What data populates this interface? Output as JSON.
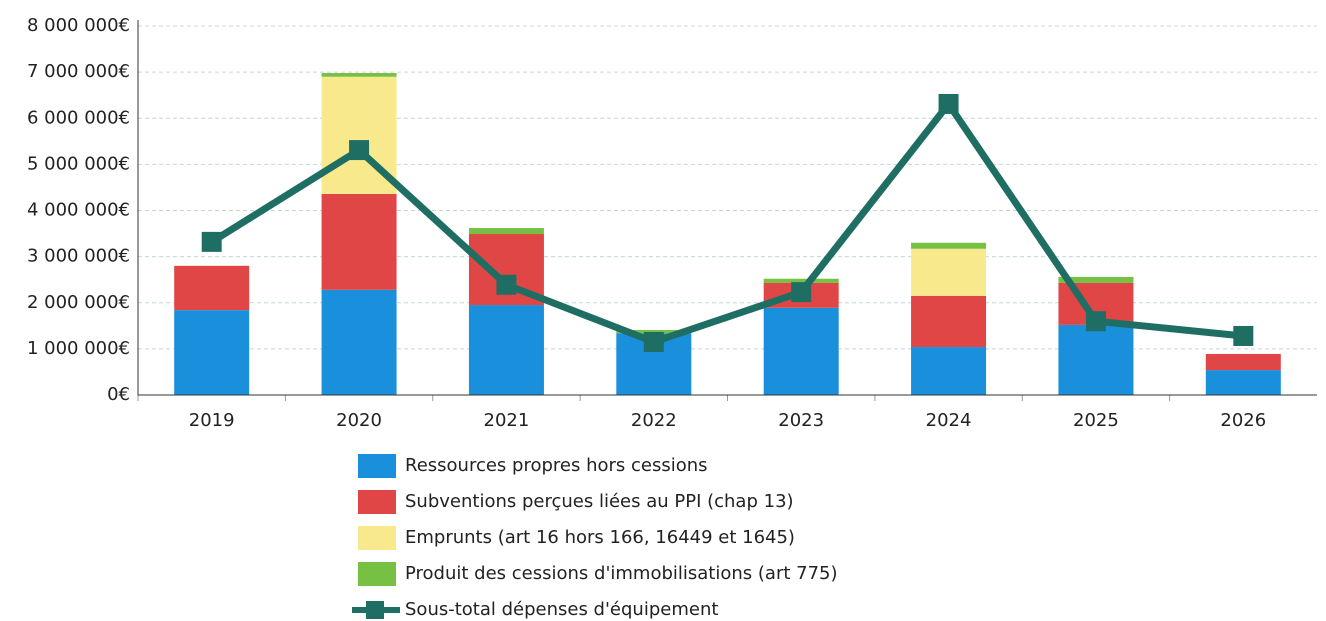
{
  "chart_data": {
    "type": "bar",
    "categories": [
      "2019",
      "2020",
      "2021",
      "2022",
      "2023",
      "2024",
      "2025",
      "2026"
    ],
    "series": [
      {
        "name": "Ressources propres hors cessions",
        "color": "#1a8fdc",
        "values": [
          1840000,
          2280000,
          1950000,
          1340000,
          1890000,
          1040000,
          1520000,
          540000
        ]
      },
      {
        "name": "Subventions perçues liées au PPI (chap 13)",
        "color": "#e04646",
        "values": [
          960000,
          2080000,
          1540000,
          0,
          540000,
          1110000,
          910000,
          350000
        ]
      },
      {
        "name": "Emprunts (art 16 hors 166, 16449 et 1645)",
        "color": "#f8ea8c",
        "values": [
          0,
          2540000,
          0,
          0,
          0,
          1020000,
          0,
          0
        ]
      },
      {
        "name": "Produit des cessions d'immobilisations (art 775)",
        "color": "#76c043",
        "values": [
          0,
          80000,
          130000,
          70000,
          90000,
          130000,
          130000,
          0
        ]
      },
      {
        "name": "Sous-total dépenses d'équipement",
        "color": "#1f6e64",
        "type": "line",
        "values": [
          3320000,
          5310000,
          2390000,
          1150000,
          2230000,
          6310000,
          1600000,
          1280000
        ]
      }
    ],
    "ylim": [
      0,
      8000000
    ],
    "yticks": [
      {
        "value": 0,
        "label": "0€"
      },
      {
        "value": 1000000,
        "label": "1 000 000€"
      },
      {
        "value": 2000000,
        "label": "2 000 000€"
      },
      {
        "value": 3000000,
        "label": "3 000 000€"
      },
      {
        "value": 4000000,
        "label": "4 000 000€"
      },
      {
        "value": 5000000,
        "label": "5 000 000€"
      },
      {
        "value": 6000000,
        "label": "6 000 000€"
      },
      {
        "value": 7000000,
        "label": "7 000 000€"
      },
      {
        "value": 8000000,
        "label": "8 000 000€"
      }
    ],
    "grid": true,
    "stacked": true,
    "legend": "bottom"
  }
}
